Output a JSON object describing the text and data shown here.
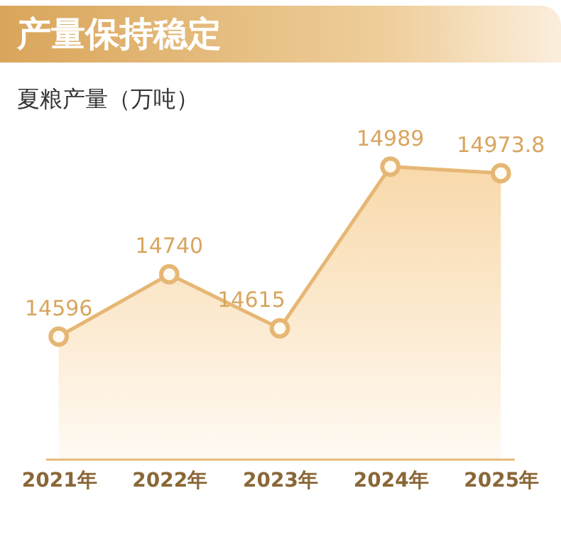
{
  "chart_data": {
    "type": "area",
    "title": "产量保持稳定",
    "ylabel": "夏粮产量（万吨）",
    "categories": [
      "2021年",
      "2022年",
      "2023年",
      "2024年",
      "2025年"
    ],
    "series": [
      {
        "color": "#e6b774",
        "values": [
          14596,
          14740,
          14615,
          14989,
          14973.8
        ]
      }
    ],
    "data_labels": true,
    "marker": "circle"
  }
}
